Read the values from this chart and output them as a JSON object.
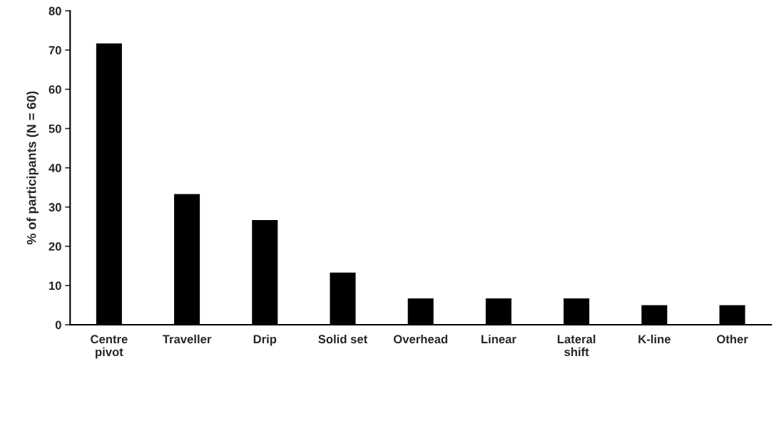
{
  "chart_data": {
    "type": "bar",
    "ylabel": "% of participants (N = 60)",
    "categories": [
      "Centre\npivot",
      "Traveller",
      "Drip",
      "Solid set",
      "Overhead",
      "Linear",
      "Lateral\nshift",
      "K-line",
      "Other"
    ],
    "values": [
      71.7,
      33.3,
      26.7,
      13.3,
      6.7,
      6.7,
      6.7,
      5.0,
      5.0
    ],
    "color": "#000000",
    "ylim": [
      0,
      80
    ],
    "yticks": [
      0,
      10,
      20,
      30,
      40,
      50,
      60,
      70,
      80
    ],
    "grid": false,
    "legend": false
  }
}
